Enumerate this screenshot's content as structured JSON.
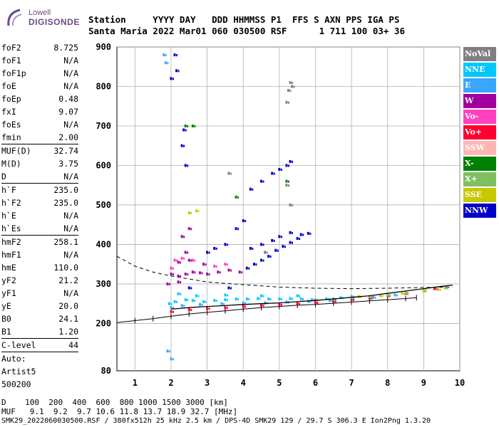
{
  "logo": {
    "line1": "Lowell",
    "line2": "DIGISONDE"
  },
  "header": {
    "row1": "Station     YYYY DAY   DDD HHMMSS P1  FFS S AXN PPS IGA PS",
    "row2": "Santa Maria 2022 Mar01 060 030500 RSF      1 711 100 03+ 36"
  },
  "params": [
    {
      "label": "foF2",
      "value": "8.725"
    },
    {
      "label": "foF1",
      "value": "N/A"
    },
    {
      "label": "foF1p",
      "value": "N/A"
    },
    {
      "label": "foE",
      "value": "N/A"
    },
    {
      "label": "foEp",
      "value": "0.48"
    },
    {
      "label": "fxI",
      "value": "9.07"
    },
    {
      "label": "foEs",
      "value": "N/A"
    },
    {
      "label": "fmin",
      "value": "2.00"
    },
    {
      "label": "MUF(D)",
      "value": "32.74",
      "sep": true
    },
    {
      "label": "M(D)",
      "value": "3.75"
    },
    {
      "label": "D",
      "value": "N/A"
    },
    {
      "label": "h`F",
      "value": "235.0",
      "sep": true
    },
    {
      "label": "h`F2",
      "value": "235.0"
    },
    {
      "label": "h`E",
      "value": "N/A"
    },
    {
      "label": "h`Es",
      "value": "N/A"
    },
    {
      "label": "hmF2",
      "value": "258.1",
      "sep": true
    },
    {
      "label": "hmF1",
      "value": "N/A"
    },
    {
      "label": "hmE",
      "value": "110.0"
    },
    {
      "label": "yF2",
      "value": "21.2"
    },
    {
      "label": "yF1",
      "value": "N/A"
    },
    {
      "label": "yE",
      "value": "20.0"
    },
    {
      "label": "B0",
      "value": "24.1"
    },
    {
      "label": "B1",
      "value": "1.20"
    },
    {
      "label": "C-level",
      "value": "44",
      "sep": true
    },
    {
      "label": "Auto:",
      "value": "",
      "sep": true
    },
    {
      "label": "Artist5",
      "value": ""
    },
    {
      "label": "500200",
      "value": ""
    }
  ],
  "legend": [
    {
      "label": "NoVal",
      "color": "#808080"
    },
    {
      "label": "NNE",
      "color": "#00c8ff"
    },
    {
      "label": "E",
      "color": "#3aa6ff"
    },
    {
      "label": "W",
      "color": "#a000a0"
    },
    {
      "label": "Vo-",
      "color": "#ff40c0"
    },
    {
      "label": "Vo+",
      "color": "#ff0030"
    },
    {
      "label": "SSW",
      "color": "#ffb4b4"
    },
    {
      "label": "X-",
      "color": "#008000"
    },
    {
      "label": "X+",
      "color": "#7cc060"
    },
    {
      "label": "SSE",
      "color": "#c8c800"
    },
    {
      "label": "NNW",
      "color": "#0000c8"
    }
  ],
  "bottom": {
    "row1": "D    100  200  400  600  800 1000 1500 3000 [km]",
    "row2": "MUF   9.1  9.2  9.7 10.6 11.8 13.7 18.9 32.7 [MHz]",
    "row3": "SMK29_2022060030500.RSF / 380fx512h 25 kHz 2.5 km / DPS-4D SMK29 129 / 29.7 S 306.3 E Ion2Png 1.3.20"
  },
  "chart_data": {
    "type": "scatter",
    "title": "",
    "xlabel": "",
    "ylabel": "",
    "xlim": [
      0.5,
      10
    ],
    "ylim": [
      80,
      900
    ],
    "x_ticks": [
      1,
      2,
      3,
      4,
      5,
      6,
      7,
      8,
      9,
      10
    ],
    "y_ticks": [
      80,
      200,
      300,
      400,
      500,
      600,
      700,
      800,
      900
    ],
    "grid": true,
    "legend_placement": "right",
    "series": [
      {
        "name": "NNW",
        "color": "#0000c8",
        "points": [
          [
            4.1,
            340
          ],
          [
            4.3,
            350
          ],
          [
            4.5,
            360
          ],
          [
            4.7,
            370
          ],
          [
            4.9,
            385
          ],
          [
            5.1,
            395
          ],
          [
            5.3,
            405
          ],
          [
            5.5,
            415
          ],
          [
            4.2,
            390
          ],
          [
            4.5,
            400
          ],
          [
            4.8,
            410
          ],
          [
            5.0,
            420
          ],
          [
            5.3,
            430
          ],
          [
            5.6,
            425
          ],
          [
            5.8,
            428
          ],
          [
            4.2,
            540
          ],
          [
            4.5,
            560
          ],
          [
            4.8,
            580
          ],
          [
            5.0,
            590
          ],
          [
            5.2,
            600
          ],
          [
            5.3,
            610
          ],
          [
            3.8,
            440
          ],
          [
            4.0,
            460
          ],
          [
            3.5,
            400
          ],
          [
            2.0,
            820
          ],
          [
            2.1,
            880
          ],
          [
            2.15,
            840
          ],
          [
            2.3,
            650
          ],
          [
            2.35,
            690
          ],
          [
            2.4,
            600
          ],
          [
            3.0,
            380
          ],
          [
            3.2,
            390
          ],
          [
            2.5,
            290
          ],
          [
            3.6,
            290
          ]
        ]
      },
      {
        "name": "W",
        "color": "#a000a0",
        "points": [
          [
            2.0,
            325
          ],
          [
            2.2,
            320
          ],
          [
            2.4,
            325
          ],
          [
            2.6,
            330
          ],
          [
            2.8,
            328
          ],
          [
            3.0,
            325
          ],
          [
            3.3,
            330
          ],
          [
            3.6,
            335
          ],
          [
            3.9,
            330
          ],
          [
            2.2,
            355
          ],
          [
            2.5,
            360
          ],
          [
            2.9,
            350
          ],
          [
            2.3,
            420
          ],
          [
            2.5,
            440
          ],
          [
            2.4,
            380
          ],
          [
            1.9,
            300
          ],
          [
            2.2,
            305
          ]
        ]
      },
      {
        "name": "Vo-",
        "color": "#ff40c0",
        "points": [
          [
            2.1,
            360
          ],
          [
            2.3,
            365
          ],
          [
            2.6,
            360
          ],
          [
            3.2,
            345
          ],
          [
            3.5,
            350
          ],
          [
            2.0,
            340
          ]
        ]
      },
      {
        "name": "NNE",
        "color": "#00c8ff",
        "points": [
          [
            1.95,
            250
          ],
          [
            2.1,
            255
          ],
          [
            2.4,
            260
          ],
          [
            2.6,
            258
          ],
          [
            2.9,
            255
          ],
          [
            3.2,
            258
          ],
          [
            3.5,
            260
          ],
          [
            3.8,
            262
          ],
          [
            4.1,
            262
          ],
          [
            4.4,
            263
          ],
          [
            4.7,
            262
          ],
          [
            5.0,
            262
          ],
          [
            5.3,
            263
          ],
          [
            5.6,
            262
          ],
          [
            5.9,
            260
          ],
          [
            6.3,
            262
          ],
          [
            6.7,
            265
          ],
          [
            7.0,
            268
          ],
          [
            2.2,
            275
          ],
          [
            2.7,
            270
          ],
          [
            3.5,
            272
          ],
          [
            4.5,
            270
          ],
          [
            5.5,
            270
          ]
        ]
      },
      {
        "name": "E",
        "color": "#3aa6ff",
        "points": [
          [
            2.0,
            240
          ],
          [
            2.3,
            245
          ],
          [
            2.8,
            248
          ],
          [
            3.4,
            250
          ],
          [
            4.0,
            252
          ],
          [
            4.6,
            252
          ],
          [
            5.2,
            254
          ],
          [
            5.8,
            256
          ],
          [
            6.4,
            258
          ],
          [
            7.0,
            262
          ],
          [
            7.6,
            266
          ],
          [
            8.2,
            272
          ],
          [
            1.8,
            880
          ],
          [
            1.85,
            860
          ],
          [
            1.9,
            130
          ],
          [
            2.0,
            110
          ]
        ]
      },
      {
        "name": "Vo+",
        "color": "#ff0030",
        "points": [
          [
            2.0,
            230
          ],
          [
            2.5,
            235
          ],
          [
            3.0,
            238
          ],
          [
            3.5,
            240
          ],
          [
            4.0,
            243
          ],
          [
            4.5,
            246
          ],
          [
            5.0,
            248
          ],
          [
            5.5,
            250
          ],
          [
            6.0,
            253
          ],
          [
            6.5,
            256
          ],
          [
            7.0,
            260
          ],
          [
            7.5,
            264
          ],
          [
            8.0,
            270
          ],
          [
            8.5,
            276
          ],
          [
            9.0,
            282
          ],
          [
            9.3,
            288
          ],
          [
            9.6,
            292
          ]
        ]
      },
      {
        "name": "X-",
        "color": "#008000",
        "points": [
          [
            2.4,
            700
          ],
          [
            2.6,
            700
          ],
          [
            3.8,
            520
          ],
          [
            5.2,
            560
          ]
        ]
      },
      {
        "name": "X+",
        "color": "#7cc060",
        "points": [
          [
            6.0,
            260
          ],
          [
            6.5,
            262
          ],
          [
            7.0,
            265
          ],
          [
            7.5,
            268
          ],
          [
            8.0,
            272
          ],
          [
            8.5,
            278
          ],
          [
            9.0,
            285
          ],
          [
            9.6,
            290
          ]
        ]
      },
      {
        "name": "SSE",
        "color": "#c8c800",
        "points": [
          [
            7.2,
            268
          ],
          [
            7.8,
            270
          ],
          [
            8.4,
            276
          ],
          [
            9.0,
            282
          ],
          [
            9.4,
            286
          ],
          [
            2.5,
            480
          ],
          [
            2.7,
            485
          ]
        ]
      },
      {
        "name": "NoVal",
        "color": "#808080",
        "points": [
          [
            5.2,
            760
          ],
          [
            5.25,
            790
          ],
          [
            5.3,
            810
          ],
          [
            5.35,
            800
          ],
          [
            5.2,
            550
          ],
          [
            5.3,
            500
          ],
          [
            6.5,
            260
          ],
          [
            3.6,
            580
          ],
          [
            4.6,
            380
          ]
        ]
      }
    ],
    "lines": {
      "profile_dashed": [
        [
          0.5,
          370
        ],
        [
          1.0,
          345
        ],
        [
          1.5,
          330
        ],
        [
          2.0,
          320
        ],
        [
          3.0,
          305
        ],
        [
          4.0,
          298
        ],
        [
          5.0,
          292
        ],
        [
          6.0,
          289
        ],
        [
          7.0,
          288
        ],
        [
          8.0,
          289
        ],
        [
          9.0,
          291
        ],
        [
          9.8,
          292
        ]
      ],
      "hprime_ticks": [
        [
          0.5,
          202
        ],
        [
          1.0,
          207
        ],
        [
          1.5,
          212
        ],
        [
          2.0,
          218
        ],
        [
          2.5,
          224
        ],
        [
          3.0,
          228
        ],
        [
          3.5,
          232
        ],
        [
          4.0,
          236
        ],
        [
          4.5,
          240
        ],
        [
          5.0,
          243
        ],
        [
          5.5,
          246
        ],
        [
          6.0,
          248
        ],
        [
          6.5,
          251
        ],
        [
          7.0,
          254
        ],
        [
          7.5,
          257
        ],
        [
          8.0,
          260
        ],
        [
          8.5,
          263
        ],
        [
          8.8,
          265
        ]
      ],
      "trace_solid": [
        [
          2.0,
          236
        ],
        [
          2.5,
          240
        ],
        [
          3.0,
          243
        ],
        [
          3.5,
          245
        ],
        [
          4.0,
          248
        ],
        [
          4.5,
          250
        ],
        [
          5.0,
          252
        ],
        [
          5.5,
          255
        ],
        [
          6.0,
          258
        ],
        [
          6.5,
          262
        ],
        [
          7.0,
          266
        ],
        [
          7.5,
          270
        ],
        [
          8.0,
          276
        ],
        [
          8.5,
          282
        ],
        [
          9.0,
          288
        ],
        [
          9.5,
          294
        ],
        [
          9.8,
          297
        ]
      ]
    }
  }
}
